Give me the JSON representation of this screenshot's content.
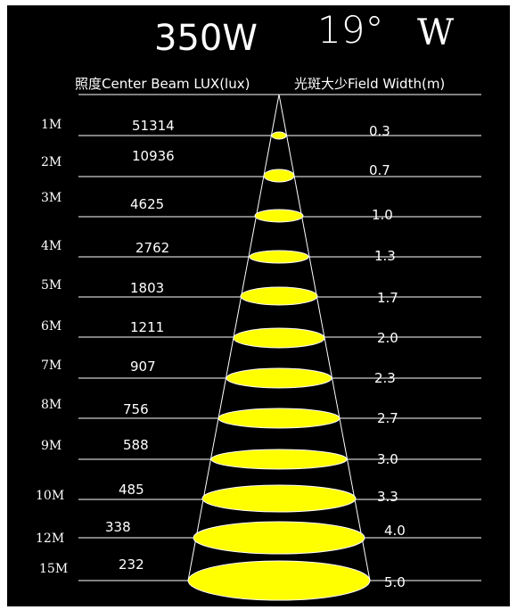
{
  "title": {
    "power": "350W",
    "angle": "19°",
    "mode": "W"
  },
  "headers": {
    "lux": "照度Center Beam LUX(lux)",
    "width": "光斑大少Field Width(m)"
  },
  "colors": {
    "background": "#000000",
    "spot": "#ffff00",
    "lines": "#ffffff"
  },
  "rows": [
    {
      "distance": "1M",
      "lux": "51314",
      "width": "0.3"
    },
    {
      "distance": "2M",
      "lux": "10936",
      "width": "0.7"
    },
    {
      "distance": "3M",
      "lux": "4625",
      "width": "1.0"
    },
    {
      "distance": "4M",
      "lux": "2762",
      "width": "1.3"
    },
    {
      "distance": "5M",
      "lux": "1803",
      "width": "1.7"
    },
    {
      "distance": "6M",
      "lux": "1211",
      "width": "2.0"
    },
    {
      "distance": "7M",
      "lux": "907",
      "width": "2.3"
    },
    {
      "distance": "8M",
      "lux": "756",
      "width": "2.7"
    },
    {
      "distance": "9M",
      "lux": "588",
      "width": "3.0"
    },
    {
      "distance": "10M",
      "lux": "485",
      "width": "3.3"
    },
    {
      "distance": "12M",
      "lux": "338",
      "width": "4.0"
    },
    {
      "distance": "15M",
      "lux": "232",
      "width": "5.0"
    }
  ]
}
